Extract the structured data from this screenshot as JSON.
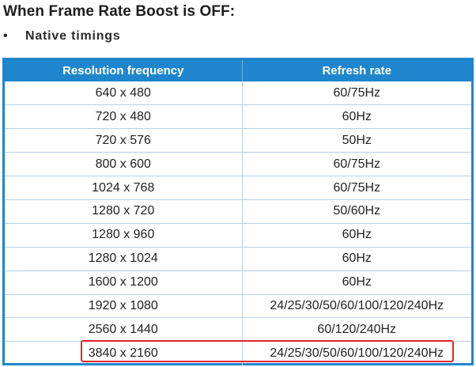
{
  "heading": "When Frame Rate Boost is OFF:",
  "bullet": {
    "symbol": "•",
    "text": "Native timings"
  },
  "table": {
    "columns": [
      "Resolution frequency",
      "Refresh rate"
    ],
    "rows": [
      {
        "resolution": "640 x 480",
        "refresh": "60/75Hz"
      },
      {
        "resolution": "720 x 480",
        "refresh": "60Hz"
      },
      {
        "resolution": "720 x 576",
        "refresh": "50Hz"
      },
      {
        "resolution": "800 x 600",
        "refresh": "60/75Hz"
      },
      {
        "resolution": "1024 x 768",
        "refresh": "60/75Hz"
      },
      {
        "resolution": "1280 x 720",
        "refresh": "50/60Hz"
      },
      {
        "resolution": "1280 x 960",
        "refresh": "60Hz"
      },
      {
        "resolution": "1280 x 1024",
        "refresh": "60Hz"
      },
      {
        "resolution": "1600 x 1200",
        "refresh": "60Hz"
      },
      {
        "resolution": "1920 x 1080",
        "refresh": "24/25/30/50/60/100/120/240Hz"
      },
      {
        "resolution": "2560 x 1440",
        "refresh": "60/120/240Hz"
      },
      {
        "resolution": "3840 x 2160",
        "refresh": "24/25/30/50/60/100/120/240Hz"
      }
    ]
  },
  "colors": {
    "header_bg": "#1f86cd",
    "highlight_border": "#e0262a"
  }
}
